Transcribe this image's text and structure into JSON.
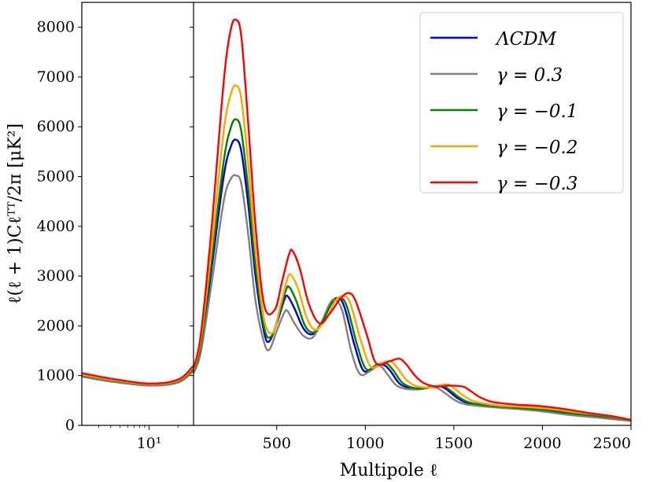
{
  "chart_data": {
    "type": "line",
    "title": "",
    "xlabel": "Multipole ℓ",
    "ylabel": "ℓ(ℓ + 1)Cℓᵀᵀ/2π  [μK²]",
    "ylim": [
      0,
      8500
    ],
    "yticks": [
      0,
      1000,
      2000,
      3000,
      4000,
      5000,
      6000,
      7000,
      8000
    ],
    "yticklabels": [
      "0",
      "1000",
      "2000",
      "3000",
      "4000",
      "5000",
      "6000",
      "7000",
      "8000"
    ],
    "panels": [
      {
        "name": "low-ell",
        "scale": "log",
        "xlim": [
          2,
          29
        ],
        "xticks": [
          10
        ],
        "xticklabels": [
          "10¹"
        ]
      },
      {
        "name": "high-ell",
        "scale": "linear",
        "xlim": [
          30,
          2500
        ],
        "xticks": [
          500,
          1000,
          1500,
          2000,
          2500
        ],
        "xticklabels": [
          "500",
          "1000",
          "1500",
          "2000",
          "2500"
        ]
      }
    ],
    "legend": {
      "position": "top-right"
    },
    "series": [
      {
        "name": "ΛCDM",
        "color": "#0000cc",
        "low": [
          [
            2,
            1000
          ],
          [
            4,
            900
          ],
          [
            10,
            820
          ],
          [
            20,
            880
          ],
          [
            29,
            1130
          ]
        ],
        "high": [
          [
            30,
            1100
          ],
          [
            70,
            1550
          ],
          [
            130,
            3100
          ],
          [
            200,
            5000
          ],
          [
            240,
            5600
          ],
          [
            270,
            5740
          ],
          [
            300,
            5500
          ],
          [
            340,
            4400
          ],
          [
            380,
            3000
          ],
          [
            430,
            1850
          ],
          [
            460,
            1700
          ],
          [
            500,
            2050
          ],
          [
            540,
            2500
          ],
          [
            560,
            2600
          ],
          [
            600,
            2350
          ],
          [
            650,
            1950
          ],
          [
            700,
            1830
          ],
          [
            750,
            2050
          ],
          [
            800,
            2400
          ],
          [
            840,
            2560
          ],
          [
            880,
            2400
          ],
          [
            940,
            1600
          ],
          [
            990,
            1100
          ],
          [
            1050,
            1180
          ],
          [
            1100,
            1220
          ],
          [
            1140,
            1100
          ],
          [
            1190,
            850
          ],
          [
            1240,
            760
          ],
          [
            1300,
            730
          ],
          [
            1360,
            770
          ],
          [
            1420,
            790
          ],
          [
            1460,
            720
          ],
          [
            1520,
            550
          ],
          [
            1580,
            450
          ],
          [
            1700,
            380
          ],
          [
            1850,
            340
          ],
          [
            2000,
            300
          ],
          [
            2150,
            230
          ],
          [
            2300,
            180
          ],
          [
            2500,
            100
          ]
        ]
      },
      {
        "name": "γ = 0.3",
        "color": "#808080",
        "low": [
          [
            2,
            980
          ],
          [
            4,
            880
          ],
          [
            10,
            800
          ],
          [
            20,
            860
          ],
          [
            29,
            1090
          ]
        ],
        "high": [
          [
            30,
            1050
          ],
          [
            70,
            1450
          ],
          [
            130,
            2800
          ],
          [
            200,
            4500
          ],
          [
            240,
            4950
          ],
          [
            270,
            5020
          ],
          [
            300,
            4850
          ],
          [
            340,
            3800
          ],
          [
            380,
            2500
          ],
          [
            430,
            1650
          ],
          [
            460,
            1530
          ],
          [
            500,
            1900
          ],
          [
            540,
            2250
          ],
          [
            560,
            2300
          ],
          [
            600,
            2050
          ],
          [
            650,
            1800
          ],
          [
            700,
            1760
          ],
          [
            750,
            2050
          ],
          [
            800,
            2450
          ],
          [
            830,
            2520
          ],
          [
            870,
            2300
          ],
          [
            920,
            1500
          ],
          [
            970,
            1030
          ],
          [
            1030,
            1100
          ],
          [
            1080,
            1200
          ],
          [
            1120,
            1050
          ],
          [
            1170,
            820
          ],
          [
            1220,
            740
          ],
          [
            1290,
            720
          ],
          [
            1350,
            750
          ],
          [
            1400,
            760
          ],
          [
            1450,
            650
          ],
          [
            1500,
            520
          ],
          [
            1560,
            430
          ],
          [
            1700,
            370
          ],
          [
            1850,
            330
          ],
          [
            2000,
            280
          ],
          [
            2150,
            210
          ],
          [
            2300,
            160
          ],
          [
            2500,
            90
          ]
        ]
      },
      {
        "name": "γ = −0.1",
        "color": "#008000",
        "low": [
          [
            2,
            1010
          ],
          [
            4,
            910
          ],
          [
            10,
            825
          ],
          [
            20,
            890
          ],
          [
            29,
            1150
          ]
        ],
        "high": [
          [
            30,
            1110
          ],
          [
            70,
            1600
          ],
          [
            130,
            3250
          ],
          [
            200,
            5300
          ],
          [
            240,
            5980
          ],
          [
            270,
            6150
          ],
          [
            300,
            5900
          ],
          [
            340,
            4700
          ],
          [
            380,
            3200
          ],
          [
            430,
            1950
          ],
          [
            470,
            1790
          ],
          [
            510,
            2200
          ],
          [
            550,
            2700
          ],
          [
            570,
            2780
          ],
          [
            610,
            2500
          ],
          [
            660,
            2000
          ],
          [
            710,
            1870
          ],
          [
            760,
            2100
          ],
          [
            810,
            2450
          ],
          [
            855,
            2560
          ],
          [
            895,
            2400
          ],
          [
            955,
            1600
          ],
          [
            1005,
            1130
          ],
          [
            1065,
            1220
          ],
          [
            1115,
            1250
          ],
          [
            1155,
            1120
          ],
          [
            1205,
            870
          ],
          [
            1255,
            770
          ],
          [
            1320,
            740
          ],
          [
            1380,
            780
          ],
          [
            1440,
            790
          ],
          [
            1480,
            700
          ],
          [
            1540,
            540
          ],
          [
            1600,
            450
          ],
          [
            1720,
            390
          ],
          [
            1870,
            350
          ],
          [
            2020,
            310
          ],
          [
            2170,
            240
          ],
          [
            2320,
            190
          ],
          [
            2500,
            105
          ]
        ]
      },
      {
        "name": "γ = −0.2",
        "color": "#ffa500",
        "low": [
          [
            2,
            1020
          ],
          [
            4,
            920
          ],
          [
            10,
            830
          ],
          [
            20,
            900
          ],
          [
            29,
            1170
          ]
        ],
        "high": [
          [
            30,
            1120
          ],
          [
            70,
            1700
          ],
          [
            130,
            3500
          ],
          [
            200,
            5900
          ],
          [
            240,
            6650
          ],
          [
            270,
            6830
          ],
          [
            300,
            6550
          ],
          [
            340,
            5200
          ],
          [
            380,
            3500
          ],
          [
            430,
            2100
          ],
          [
            480,
            1870
          ],
          [
            520,
            2400
          ],
          [
            560,
            2950
          ],
          [
            580,
            3020
          ],
          [
            620,
            2750
          ],
          [
            670,
            2150
          ],
          [
            720,
            1920
          ],
          [
            780,
            2150
          ],
          [
            830,
            2500
          ],
          [
            875,
            2600
          ],
          [
            915,
            2450
          ],
          [
            975,
            1700
          ],
          [
            1030,
            1180
          ],
          [
            1090,
            1250
          ],
          [
            1140,
            1290
          ],
          [
            1180,
            1160
          ],
          [
            1230,
            920
          ],
          [
            1280,
            800
          ],
          [
            1350,
            760
          ],
          [
            1410,
            800
          ],
          [
            1470,
            820
          ],
          [
            1510,
            720
          ],
          [
            1570,
            560
          ],
          [
            1630,
            470
          ],
          [
            1750,
            400
          ],
          [
            1900,
            370
          ],
          [
            2050,
            330
          ],
          [
            2200,
            260
          ],
          [
            2350,
            200
          ],
          [
            2500,
            110
          ]
        ]
      },
      {
        "name": "γ = −0.3",
        "color": "#ff0000",
        "low": [
          [
            2,
            1050
          ],
          [
            4,
            940
          ],
          [
            10,
            840
          ],
          [
            20,
            920
          ],
          [
            29,
            1200
          ]
        ],
        "high": [
          [
            30,
            1150
          ],
          [
            70,
            1800
          ],
          [
            130,
            3900
          ],
          [
            200,
            6900
          ],
          [
            240,
            7950
          ],
          [
            270,
            8150
          ],
          [
            300,
            7800
          ],
          [
            340,
            6000
          ],
          [
            380,
            4000
          ],
          [
            430,
            2400
          ],
          [
            490,
            2330
          ],
          [
            530,
            2900
          ],
          [
            570,
            3450
          ],
          [
            590,
            3500
          ],
          [
            630,
            3150
          ],
          [
            680,
            2450
          ],
          [
            740,
            2050
          ],
          [
            800,
            2250
          ],
          [
            860,
            2550
          ],
          [
            905,
            2660
          ],
          [
            945,
            2500
          ],
          [
            1010,
            1800
          ],
          [
            1060,
            1250
          ],
          [
            1130,
            1280
          ],
          [
            1190,
            1340
          ],
          [
            1230,
            1230
          ],
          [
            1280,
            1000
          ],
          [
            1330,
            850
          ],
          [
            1400,
            780
          ],
          [
            1470,
            800
          ],
          [
            1550,
            780
          ],
          [
            1590,
            700
          ],
          [
            1650,
            560
          ],
          [
            1720,
            470
          ],
          [
            1840,
            420
          ],
          [
            1980,
            390
          ],
          [
            2120,
            330
          ],
          [
            2260,
            250
          ],
          [
            2400,
            180
          ],
          [
            2500,
            110
          ]
        ]
      }
    ]
  }
}
